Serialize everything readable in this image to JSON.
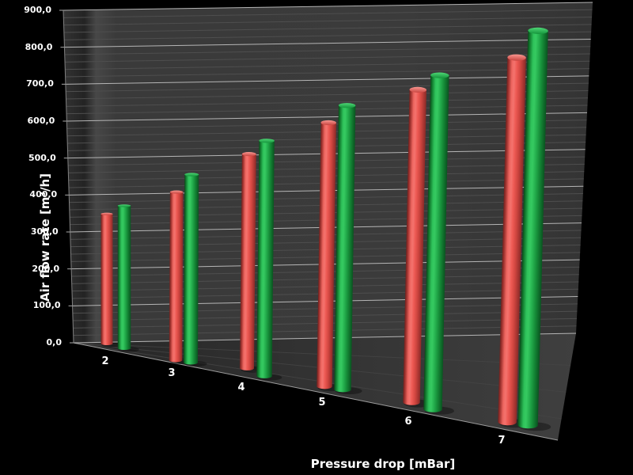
{
  "chart_data": {
    "type": "bar",
    "variant": "3d-cylinder-bars",
    "title": "",
    "xlabel": "Pressure drop [mBar]",
    "ylabel": "Air flow rate [m³/h]",
    "categories": [
      "2",
      "3",
      "4",
      "5",
      "6",
      "7"
    ],
    "series": [
      {
        "name": "red-series",
        "color": "#e8524d",
        "values": [
          350,
          430,
          520,
          610,
          690,
          770
        ]
      },
      {
        "name": "green-series",
        "color": "#22b14c",
        "values": [
          380,
          475,
          565,
          650,
          730,
          825
        ]
      }
    ],
    "ylim": [
      0,
      900
    ],
    "ytick_step": 100,
    "minor_grid_step": 20,
    "yticks": [
      "0,0",
      "100,0",
      "200,0",
      "300,0",
      "400,0",
      "500,0",
      "600,0",
      "700,0",
      "800,0",
      "900,0"
    ],
    "legend_position": "none",
    "grid": "on",
    "colors": {
      "background": "#000000",
      "wall": "#3a3a3a",
      "floor": "#333333",
      "major_grid": "#bcbcbc",
      "minor_grid": "#4e4e4e",
      "text": "#ffffff"
    }
  }
}
